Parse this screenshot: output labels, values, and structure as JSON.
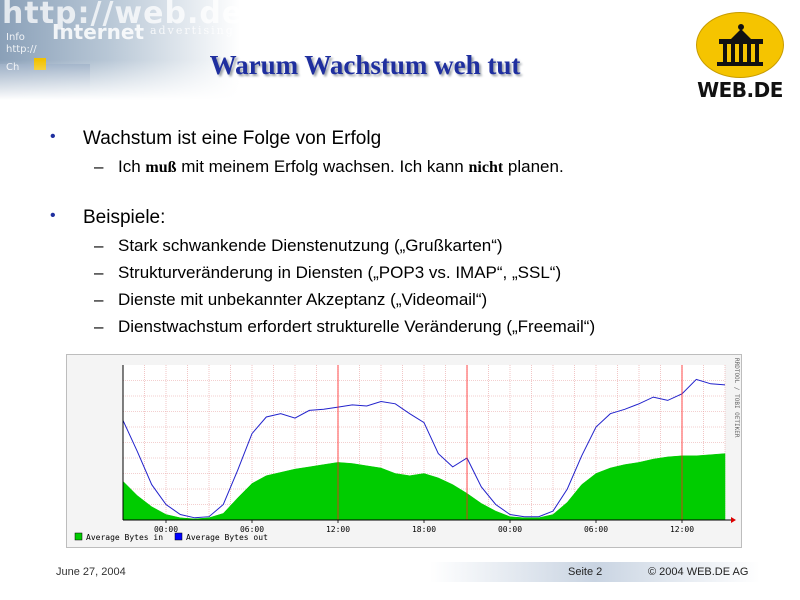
{
  "banner": {
    "url_text": "http://web.de",
    "internet_text": "Internet",
    "advertising_text": "advertising",
    "small_1": "Info",
    "small_2": "http://",
    "small_3": "Ch"
  },
  "slide": {
    "title": "Warum Wachstum weh tut"
  },
  "logo": {
    "text": "WEB.DE",
    "color": "#f5c400"
  },
  "bullets": [
    {
      "text": "Wachstum ist eine Folge von Erfolg",
      "sub": [
        {
          "parts": [
            "Ich ",
            "muß",
            " mit meinem Erfolg wachsen. Ich kann ",
            "nicht",
            " planen."
          ]
        }
      ]
    },
    {
      "text": "Beispiele:",
      "sub": [
        {
          "text": "Stark schwankende Dienstenutzung („Grußkarten“)"
        },
        {
          "text": "Strukturveränderung in Diensten („POP3 vs. IMAP“, „SSL“)"
        },
        {
          "text": "Dienste mit unbekannter Akzeptanz („Videomail“)"
        },
        {
          "text": "Dienstwachstum erfordert strukturelle Veränderung („Freemail“)"
        }
      ]
    }
  ],
  "chart_data": {
    "type": "area",
    "x_ticks": [
      "00:00",
      "06:00",
      "12:00",
      "18:00",
      "00:00",
      "06:00",
      "12:00"
    ],
    "side_label": "RRDTOOL / TOBI OETIKER",
    "legend": [
      {
        "name": "Average Bytes in",
        "color": "#00cc00"
      },
      {
        "name": "Average Bytes out",
        "color": "#0000ff"
      }
    ],
    "series": [
      {
        "name": "Average Bytes in",
        "style": "area",
        "color": "#00cc00",
        "hours": [
          0,
          1,
          2,
          3,
          4,
          5,
          6,
          7,
          8,
          9,
          10,
          11,
          12,
          13,
          14,
          15,
          16,
          17,
          18,
          19,
          20,
          21,
          22,
          23,
          24,
          25,
          26,
          27,
          28,
          29,
          30,
          31,
          32,
          33,
          34,
          35,
          36,
          37,
          38,
          39,
          40,
          41,
          42
        ],
        "values": [
          35,
          22,
          12,
          5,
          2,
          1,
          2,
          6,
          20,
          33,
          40,
          43,
          46,
          48,
          50,
          52,
          51,
          49,
          47,
          42,
          40,
          42,
          38,
          32,
          24,
          15,
          8,
          3,
          2,
          2,
          5,
          16,
          32,
          42,
          47,
          50,
          52,
          55,
          57,
          58,
          58,
          59,
          60
        ]
      },
      {
        "name": "Average Bytes out",
        "style": "line",
        "color": "#2222cc",
        "hours": [
          0,
          1,
          2,
          3,
          4,
          5,
          6,
          7,
          8,
          9,
          10,
          11,
          12,
          13,
          14,
          15,
          16,
          17,
          18,
          19,
          20,
          21,
          22,
          23,
          24,
          25,
          26,
          27,
          28,
          29,
          30,
          31,
          32,
          33,
          34,
          35,
          36,
          37,
          38,
          39,
          40,
          41,
          42
        ],
        "values": [
          90,
          62,
          32,
          14,
          5,
          2,
          3,
          14,
          45,
          78,
          93,
          96,
          92,
          99,
          100,
          102,
          104,
          103,
          107,
          105,
          96,
          88,
          60,
          48,
          56,
          30,
          14,
          5,
          3,
          3,
          8,
          28,
          58,
          84,
          96,
          100,
          105,
          111,
          108,
          114,
          127,
          123,
          122
        ]
      }
    ],
    "y_range": [
      0,
      140
    ]
  },
  "footer": {
    "date": "June 27, 2004",
    "page": "Seite 2",
    "copyright": "© 2004 WEB.DE AG"
  }
}
